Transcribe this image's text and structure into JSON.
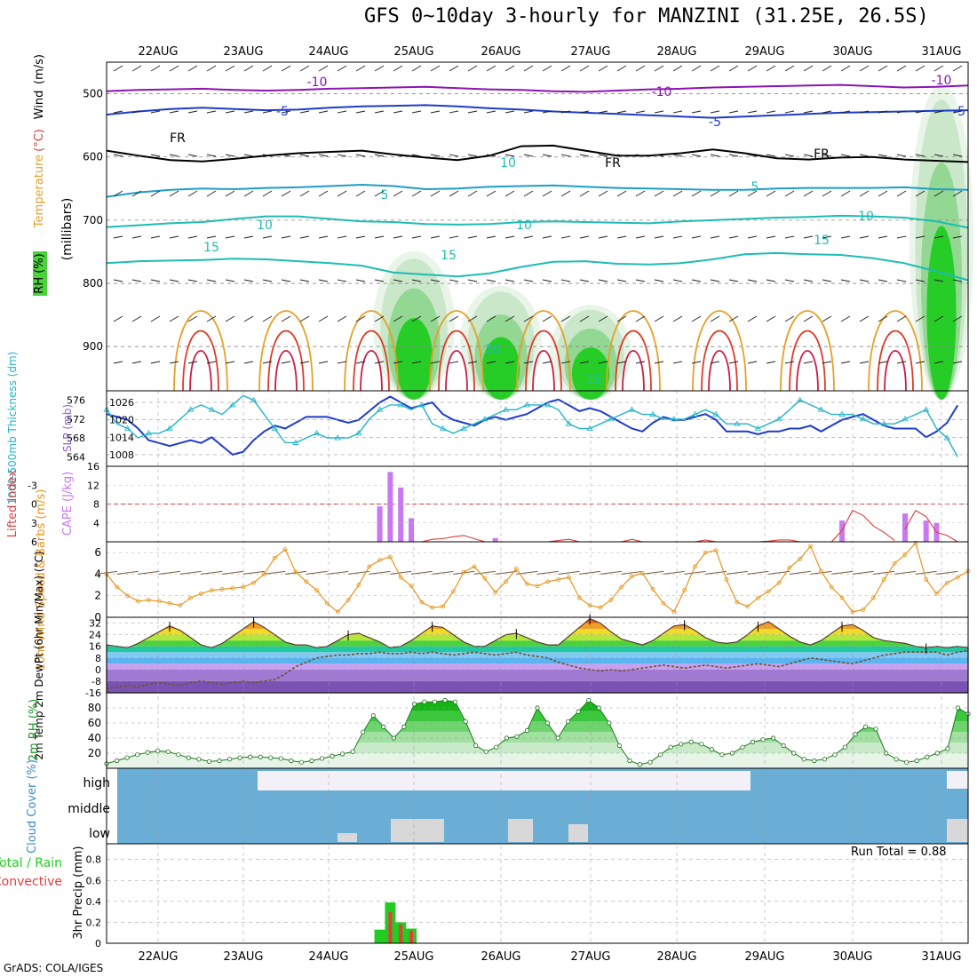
{
  "title": "GFS 0~10day 3-hourly for MANZINI (31.25E, 26.5S)",
  "credit": "GrADS: COLA/IGES",
  "run_total": "Run Total = 0.88",
  "colors": {
    "wind_purple": "#8c14b4",
    "wind_blue": "#1e3cc8",
    "temp_cyan": "#1e9ec8",
    "temp_teal": "#1ebcb4",
    "temp_orange": "#e6a028",
    "temp_red": "#dc3c28",
    "rh_green": "#22cc22",
    "slp_blue": "#1e3cc8",
    "thick_cyan": "#22b4c8",
    "cape_violet": "#c878f0",
    "li_red": "#dc3c3c",
    "speed_orange": "#e6961e",
    "barb_brown": "#7a5a3c",
    "cloud_blue": "#6aaed6",
    "cloud_white": "#f4f0f8",
    "cloud_gray": "#d8d8d8",
    "precip_green": "#22cc22",
    "precip_red": "#e63c3c"
  },
  "chart_data": [
    {
      "type": "heatmap",
      "id": "upper_air",
      "x": [
        "22AUG",
        "23AUG",
        "24AUG",
        "25AUG",
        "26AUG",
        "27AUG",
        "28AUG",
        "29AUG",
        "30AUG",
        "31AUG"
      ],
      "ylabel_parts": [
        "RH (%)",
        "Temperature",
        "(°C)",
        "Wind",
        "(m/s)",
        "(millibars)"
      ],
      "yticks": [
        "500",
        "600",
        "700",
        "800",
        "900"
      ],
      "ylim": [
        450,
        970
      ],
      "contour_labels": [
        "-10",
        "-10",
        "-10",
        "-5",
        "-5",
        "-5",
        "FR",
        "FR",
        "FR",
        "5",
        "5",
        "10",
        "10",
        "10",
        "15",
        "15",
        "15",
        "10",
        "30",
        "15"
      ],
      "isotherms": [
        {
          "label": "-10",
          "color": "purple",
          "p": [
            496,
            494,
            493,
            492,
            494,
            495,
            494,
            492,
            491,
            490,
            489,
            491,
            493,
            494,
            496,
            497,
            495,
            493,
            492,
            490,
            489,
            488,
            487,
            486,
            488,
            490,
            489,
            487
          ]
        },
        {
          "label": "-5",
          "color": "blue",
          "p": [
            533,
            528,
            524,
            522,
            524,
            526,
            525,
            522,
            520,
            519,
            518,
            520,
            523,
            525,
            528,
            530,
            532,
            534,
            536,
            538,
            536,
            534,
            532,
            530,
            529,
            528,
            527,
            526
          ]
        },
        {
          "label": "FR",
          "color": "black",
          "p": [
            590,
            598,
            605,
            607,
            603,
            598,
            594,
            592,
            590,
            596,
            601,
            605,
            598,
            583,
            582,
            590,
            598,
            598,
            594,
            588,
            594,
            602,
            604,
            601,
            600,
            604,
            606,
            608
          ]
        },
        {
          "label": "5",
          "color": "cyan",
          "p": [
            663,
            656,
            652,
            650,
            651,
            649,
            648,
            646,
            644,
            646,
            651,
            650,
            647,
            646,
            645,
            647,
            649,
            650,
            651,
            652,
            652,
            650,
            649,
            649,
            649,
            648,
            651,
            652
          ]
        },
        {
          "label": "10",
          "color": "teal",
          "p": [
            711,
            708,
            705,
            703,
            698,
            694,
            694,
            698,
            702,
            703,
            706,
            707,
            706,
            703,
            702,
            703,
            704,
            705,
            702,
            700,
            698,
            696,
            695,
            693,
            694,
            696,
            702,
            712
          ]
        },
        {
          "label": "15",
          "color": "teal",
          "p": [
            768,
            765,
            764,
            763,
            761,
            762,
            765,
            768,
            772,
            783,
            786,
            789,
            784,
            774,
            766,
            765,
            769,
            770,
            768,
            762,
            754,
            752,
            754,
            755,
            760,
            768,
            781,
            795
          ]
        }
      ],
      "rh_cores": [
        {
          "day": "25AUG",
          "p_top": 735,
          "p_bottom": 970,
          "level": "high"
        },
        {
          "day": "26AUG",
          "p_top": 790,
          "p_bottom": 970,
          "level": "high"
        },
        {
          "day": "27AUG",
          "p_top": 820,
          "p_bottom": 970,
          "level": "high"
        },
        {
          "day": "31AUG",
          "p_top": 470,
          "p_bottom": 970,
          "level": "medium"
        }
      ]
    },
    {
      "type": "line",
      "id": "slp_thickness",
      "ylabel_left": "1000-500mb Thickness (dm)",
      "ylabel_right": "SLP (mb)",
      "yticks_left": [
        "576",
        "572",
        "568",
        "564"
      ],
      "yticks_right": [
        "1026",
        "1020",
        "1014",
        "1008"
      ],
      "series": [
        {
          "name": "SLP (mb)",
          "axis": "right",
          "values": [
            1022,
            1021,
            1020,
            1017,
            1013,
            1012,
            1011,
            1012,
            1013,
            1012,
            1014,
            1011,
            1008,
            1009,
            1013,
            1016,
            1018,
            1017,
            1019,
            1021,
            1021,
            1021,
            1020,
            1019,
            1020,
            1023,
            1026,
            1028,
            1026,
            1024,
            1025,
            1026,
            1022,
            1020,
            1019,
            1018,
            1020,
            1021,
            1020,
            1021,
            1022,
            1024,
            1026,
            1027,
            1025,
            1023,
            1024,
            1023,
            1021,
            1019,
            1017,
            1016,
            1019,
            1021,
            1020,
            1020,
            1021,
            1022,
            1020,
            1016,
            1016,
            1016,
            1015,
            1016,
            1016,
            1017,
            1017,
            1018,
            1016,
            1018,
            1020,
            1021,
            1022,
            1020,
            1018,
            1017,
            1017,
            1017,
            1014,
            1016,
            1019,
            1025
          ]
        },
        {
          "name": "1000-500mb Thickness (dm)",
          "axis": "left",
          "values": [
            574,
            571,
            570,
            568,
            569,
            569,
            570,
            572,
            574,
            575,
            574,
            573,
            575,
            577,
            576,
            573,
            570,
            567,
            567,
            568,
            569,
            568,
            568,
            568,
            569,
            572,
            574,
            575,
            575,
            574,
            575,
            571,
            570,
            569,
            570,
            571,
            572,
            573,
            574,
            574,
            575,
            575,
            575,
            574,
            571,
            570,
            570,
            571,
            572,
            573,
            574,
            573,
            573,
            572,
            572,
            572,
            573,
            574,
            573,
            571,
            571,
            571,
            570,
            571,
            572,
            574,
            576,
            575,
            574,
            573,
            573,
            573,
            572,
            571,
            571,
            571,
            572,
            573,
            574,
            570,
            568,
            564
          ]
        }
      ]
    },
    {
      "type": "bar",
      "id": "cape_li",
      "ylabel_left": "Lifted Index",
      "ylabel_right": "CAPE (J/kg)",
      "yticks_left": [
        "-3",
        "0",
        "3",
        "6"
      ],
      "yticks_right": [
        "16",
        "12",
        "8",
        "4"
      ],
      "cape_bars": [
        {
          "index": 26,
          "value": 7.5
        },
        {
          "index": 27,
          "value": 14.8
        },
        {
          "index": 28,
          "value": 11.5
        },
        {
          "index": 29,
          "value": 5.0
        },
        {
          "index": 37,
          "value": 0.8
        },
        {
          "index": 70,
          "value": 4.5
        },
        {
          "index": 76,
          "value": 6.0
        },
        {
          "index": 78,
          "value": 4.5
        },
        {
          "index": 79,
          "value": 4.0
        }
      ],
      "lifted_index_segments": [
        {
          "start": 30,
          "values": [
            6,
            5.6,
            5.5,
            5.2,
            5.0,
            5.5,
            6
          ]
        },
        {
          "start": 42,
          "values": [
            6,
            5.8,
            5.6,
            6
          ]
        },
        {
          "start": 49,
          "values": [
            6,
            5.6,
            6
          ]
        },
        {
          "start": 56,
          "values": [
            6,
            5.7,
            6
          ]
        },
        {
          "start": 62,
          "values": [
            6,
            5.9,
            5.7,
            5.7,
            6
          ]
        },
        {
          "start": 69,
          "values": [
            6,
            4.2,
            1.0,
            1.8,
            3.5,
            4.5,
            5.8
          ]
        },
        {
          "start": 76,
          "values": [
            4.0,
            1.0,
            2.0,
            4.5,
            5.0,
            6.0
          ]
        }
      ]
    },
    {
      "type": "line",
      "id": "wind10m",
      "ylabel": "10m Wind Speed & Barbs (m/s)",
      "yticks": [
        "6",
        "4",
        "2",
        "0"
      ],
      "ylim": [
        0,
        7
      ],
      "series": [
        {
          "name": "10m Wind Speed",
          "values": [
            4.0,
            2.8,
            2.0,
            1.5,
            1.6,
            1.5,
            1.3,
            1.1,
            1.8,
            2.2,
            2.5,
            2.6,
            2.7,
            2.8,
            3.2,
            4.0,
            5.5,
            6.3,
            4.2,
            3.3,
            2.5,
            1.3,
            0.5,
            1.6,
            3.0,
            4.7,
            5.3,
            5.6,
            3.7,
            2.9,
            1.4,
            0.9,
            1.0,
            2.4,
            4.2,
            4.7,
            3.6,
            2.3,
            3.3,
            4.5,
            3.1,
            2.9,
            3.3,
            3.5,
            3.7,
            1.8,
            1.1,
            0.9,
            1.6,
            2.8,
            3.8,
            4.1,
            2.6,
            1.3,
            0.5,
            2.5,
            4.7,
            6.0,
            6.2,
            3.5,
            1.4,
            1.0,
            1.8,
            2.4,
            3.2,
            4.6,
            5.4,
            6.6,
            4.3,
            2.8,
            1.8,
            0.5,
            0.7,
            1.8,
            3.5,
            5.0,
            5.8,
            6.9,
            3.5,
            2.2,
            3.2,
            3.7,
            4.3
          ]
        }
      ]
    },
    {
      "type": "area",
      "id": "temp2m",
      "ylabel": "2m Temp 2m DewPt (6hr Min/Max) (°C)",
      "yticks": [
        "32",
        "24",
        "16",
        "8",
        "0",
        "-8",
        "-16"
      ],
      "ylim": [
        -16,
        36
      ],
      "series": [
        {
          "name": "2m Temp",
          "values": [
            17,
            16,
            15,
            18,
            22,
            26,
            30,
            27,
            22,
            17,
            15,
            18,
            23,
            28,
            33,
            29,
            24,
            19,
            17,
            17,
            15,
            16,
            20,
            24,
            25,
            22,
            19,
            15,
            16,
            20,
            25,
            30,
            29,
            24,
            19,
            16,
            16,
            20,
            24,
            25,
            22,
            19,
            17,
            17,
            23,
            29,
            35,
            32,
            26,
            21,
            19,
            17,
            20,
            25,
            30,
            31,
            27,
            22,
            19,
            18,
            19,
            24,
            30,
            33,
            28,
            23,
            19,
            17,
            20,
            25,
            30,
            31,
            27,
            22,
            20,
            19,
            18,
            16,
            15,
            16,
            15,
            16,
            15
          ]
        },
        {
          "name": "2m DewPt",
          "values": [
            -13,
            -12,
            -11,
            -12,
            -10,
            -9,
            -10,
            -11,
            -9,
            -8,
            -9,
            -10,
            -9,
            -8,
            -9,
            -8,
            -7,
            -3,
            2,
            5,
            8,
            9,
            10,
            10,
            11,
            11,
            12,
            11,
            11,
            12,
            11,
            12,
            11,
            10,
            11,
            12,
            11,
            10,
            11,
            12,
            10,
            9,
            8,
            5,
            3,
            1,
            0,
            -1,
            0,
            -1,
            0,
            1,
            2,
            3,
            2,
            1,
            2,
            3,
            2,
            1,
            2,
            3,
            4,
            3,
            2,
            4,
            6,
            8,
            7,
            6,
            5,
            4,
            6,
            8,
            10,
            11,
            12,
            12,
            12,
            12,
            10,
            12,
            13
          ]
        }
      ],
      "maxmin_bars_at_peaks": [
        6,
        14,
        23,
        31,
        39,
        46,
        55,
        62,
        70,
        78
      ]
    },
    {
      "type": "area",
      "id": "rh2m",
      "ylabel": "2m RH (%)",
      "yticks": [
        "80",
        "60",
        "40",
        "20"
      ],
      "ylim": [
        0,
        100
      ],
      "series": [
        {
          "name": "2m RH",
          "values": [
            6,
            10,
            14,
            18,
            21,
            23,
            22,
            18,
            14,
            12,
            9,
            10,
            12,
            14,
            15,
            15,
            14,
            13,
            10,
            8,
            10,
            13,
            16,
            19,
            22,
            48,
            70,
            55,
            40,
            55,
            85,
            88,
            88,
            90,
            88,
            62,
            30,
            22,
            28,
            40,
            42,
            50,
            80,
            60,
            40,
            62,
            75,
            90,
            80,
            60,
            30,
            10,
            5,
            8,
            18,
            28,
            32,
            35,
            32,
            25,
            18,
            20,
            28,
            35,
            38,
            40,
            30,
            20,
            12,
            10,
            12,
            18,
            28,
            45,
            55,
            52,
            20,
            12,
            8,
            10,
            15,
            20,
            26,
            80,
            72
          ]
        }
      ]
    },
    {
      "type": "bar",
      "id": "cloud",
      "ylabel": "Cloud Cover (%)",
      "levels": [
        "high",
        "middle",
        "low"
      ]
    },
    {
      "type": "bar",
      "id": "precip",
      "ylabel_left": "Total / Rain",
      "ylabel_left2": "Convective",
      "ylabel": "3hr Precip (mm)",
      "yticks": [
        "0.8",
        "0.6",
        "0.4",
        "0.2",
        "0"
      ],
      "ylim": [
        0,
        0.95
      ],
      "x": [
        "22AUG",
        "23AUG",
        "24AUG",
        "25AUG",
        "26AUG",
        "27AUG",
        "28AUG",
        "29AUG",
        "30AUG",
        "31AUG"
      ],
      "bars": [
        {
          "index": 26,
          "total": 0.13,
          "convective": 0.0
        },
        {
          "index": 27,
          "total": 0.39,
          "convective": 0.3
        },
        {
          "index": 28,
          "total": 0.2,
          "convective": 0.18
        },
        {
          "index": 29,
          "total": 0.14,
          "convective": 0.12
        }
      ]
    }
  ]
}
